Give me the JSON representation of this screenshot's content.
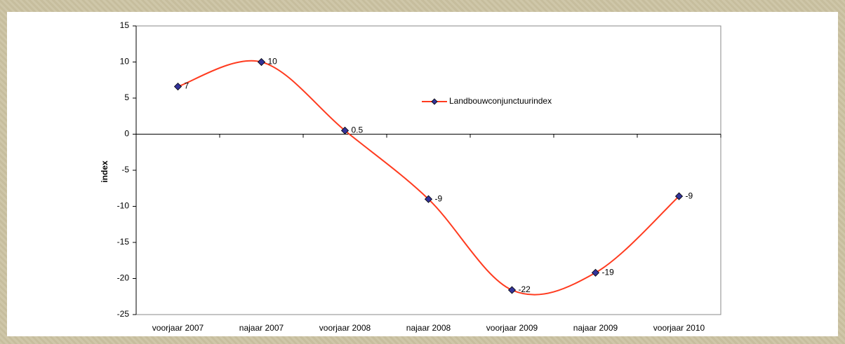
{
  "chart_data": {
    "type": "line",
    "ylabel": "index",
    "categories": [
      "voorjaar 2007",
      "najaar 2007",
      "voorjaar 2008",
      "najaar 2008",
      "voorjaar 2009",
      "najaar 2009",
      "voorjaar 2010"
    ],
    "series": [
      {
        "name": "Landbouwconjunctuurindex",
        "color": "#ff3b1f",
        "marker_color": "#333399",
        "values": [
          6.6,
          10,
          0.5,
          -9,
          -21.6,
          -19.2,
          -8.6
        ],
        "value_labels": [
          "7",
          "10",
          "0.5",
          "-9",
          "-22",
          "-19",
          "-9"
        ]
      }
    ],
    "ylim": [
      -25,
      15
    ],
    "yticks": [
      -25,
      -20,
      -15,
      -10,
      -5,
      0,
      5,
      10,
      15
    ],
    "grid": false,
    "legend": "upper right",
    "smooth": true
  }
}
